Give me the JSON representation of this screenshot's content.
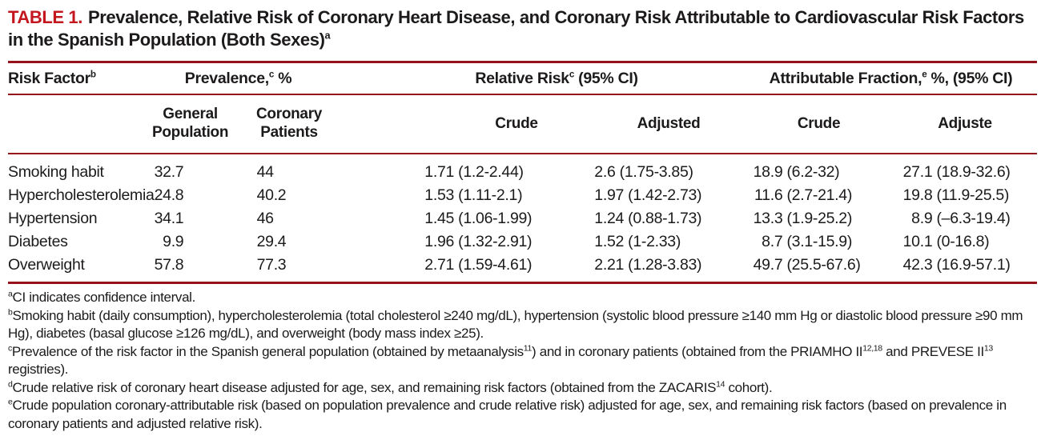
{
  "title": {
    "label": "TABLE 1.",
    "text": "Prevalence, Relative Risk of Coronary Heart Disease, and Coronary Risk Attributable to Cardiovascular Risk Factors in the Spanish Population (Both Sexes)",
    "sup": "a"
  },
  "colors": {
    "accent_red": "#c4161e",
    "rule_red": "#96121a",
    "text": "#1c1a1a"
  },
  "table": {
    "groups": [
      {
        "label": "Risk Factor",
        "sup": "b",
        "tail": ""
      },
      {
        "label": "Prevalence,",
        "sup": "c",
        "tail": " %"
      },
      {
        "label": "Relative Risk",
        "sup": "c",
        "tail": " (95% CI)"
      },
      {
        "label": "Attributable Fraction,",
        "sup": "e",
        "tail": " %, (95% CI)"
      }
    ],
    "subheaders": [
      "General Population",
      "Coronary Patients",
      "Crude",
      "Adjusted",
      "Crude",
      "Adjuste"
    ],
    "rows": [
      {
        "factor": "Smoking habit",
        "values": [
          "32.7",
          "44",
          "1.71 (1.2-2.44)",
          "2.6 (1.75-3.85)",
          "18.9 (6.2-32)",
          "27.1 (18.9-32.6)"
        ]
      },
      {
        "factor": "Hypercholesterolemia",
        "values": [
          "24.8",
          "40.2",
          "1.53 (1.11-2.1)",
          "1.97 (1.42-2.73)",
          "11.6 (2.7-21.4)",
          "19.8 (11.9-25.5)"
        ]
      },
      {
        "factor": "Hypertension",
        "values": [
          "34.1",
          "46",
          "1.45 (1.06-1.99)",
          "1.24 (0.88-1.73)",
          "13.3 (1.9-25.2)",
          "8.9 (–6.3-19.4)"
        ]
      },
      {
        "factor": "Diabetes",
        "values": [
          "9.9",
          "29.4",
          "1.96 (1.32-2.91)",
          "1.52 (1-2.33)",
          "8.7 (3.1-15.9)",
          "10.1 (0-16.8)"
        ]
      },
      {
        "factor": "Overweight",
        "values": [
          "57.8",
          "77.3",
          "2.71 (1.59-4.61)",
          "2.21 (1.28-3.83)",
          "49.7 (25.5-67.6)",
          "42.3 (16.9-57.1)"
        ]
      }
    ]
  },
  "footnotes": [
    {
      "marker": "a",
      "parts": [
        "CI indicates confidence interval."
      ]
    },
    {
      "marker": "b",
      "parts": [
        "Smoking habit (daily consumption), hypercholesterolemia (total cholesterol ≥240 mg/dL), hypertension (systolic blood pressure ≥140 mm Hg or diastolic blood pressure ≥90 mm Hg), diabetes (basal glucose ≥126 mg/dL), and overweight (body mass index ≥25)."
      ]
    },
    {
      "marker": "c",
      "parts": [
        "Prevalence of the risk factor in the Spanish general population (obtained by metaanalysis",
        {
          "sup": "11"
        },
        ") and in coronary patients (obtained from the PRIAMHO II",
        {
          "sup": "12,18"
        },
        " and PREVESE II",
        {
          "sup": "13"
        },
        " registries)."
      ]
    },
    {
      "marker": "d",
      "parts": [
        "Crude relative risk of coronary heart disease adjusted for age, sex, and remaining risk factors (obtained from the ZACARIS",
        {
          "sup": "14"
        },
        " cohort)."
      ]
    },
    {
      "marker": "e",
      "parts": [
        "Crude population coronary-attributable risk (based on population prevalence and crude relative risk) adjusted for age, sex, and remaining risk factors (based on prevalence in coronary patients and adjusted relative risk)."
      ]
    }
  ]
}
